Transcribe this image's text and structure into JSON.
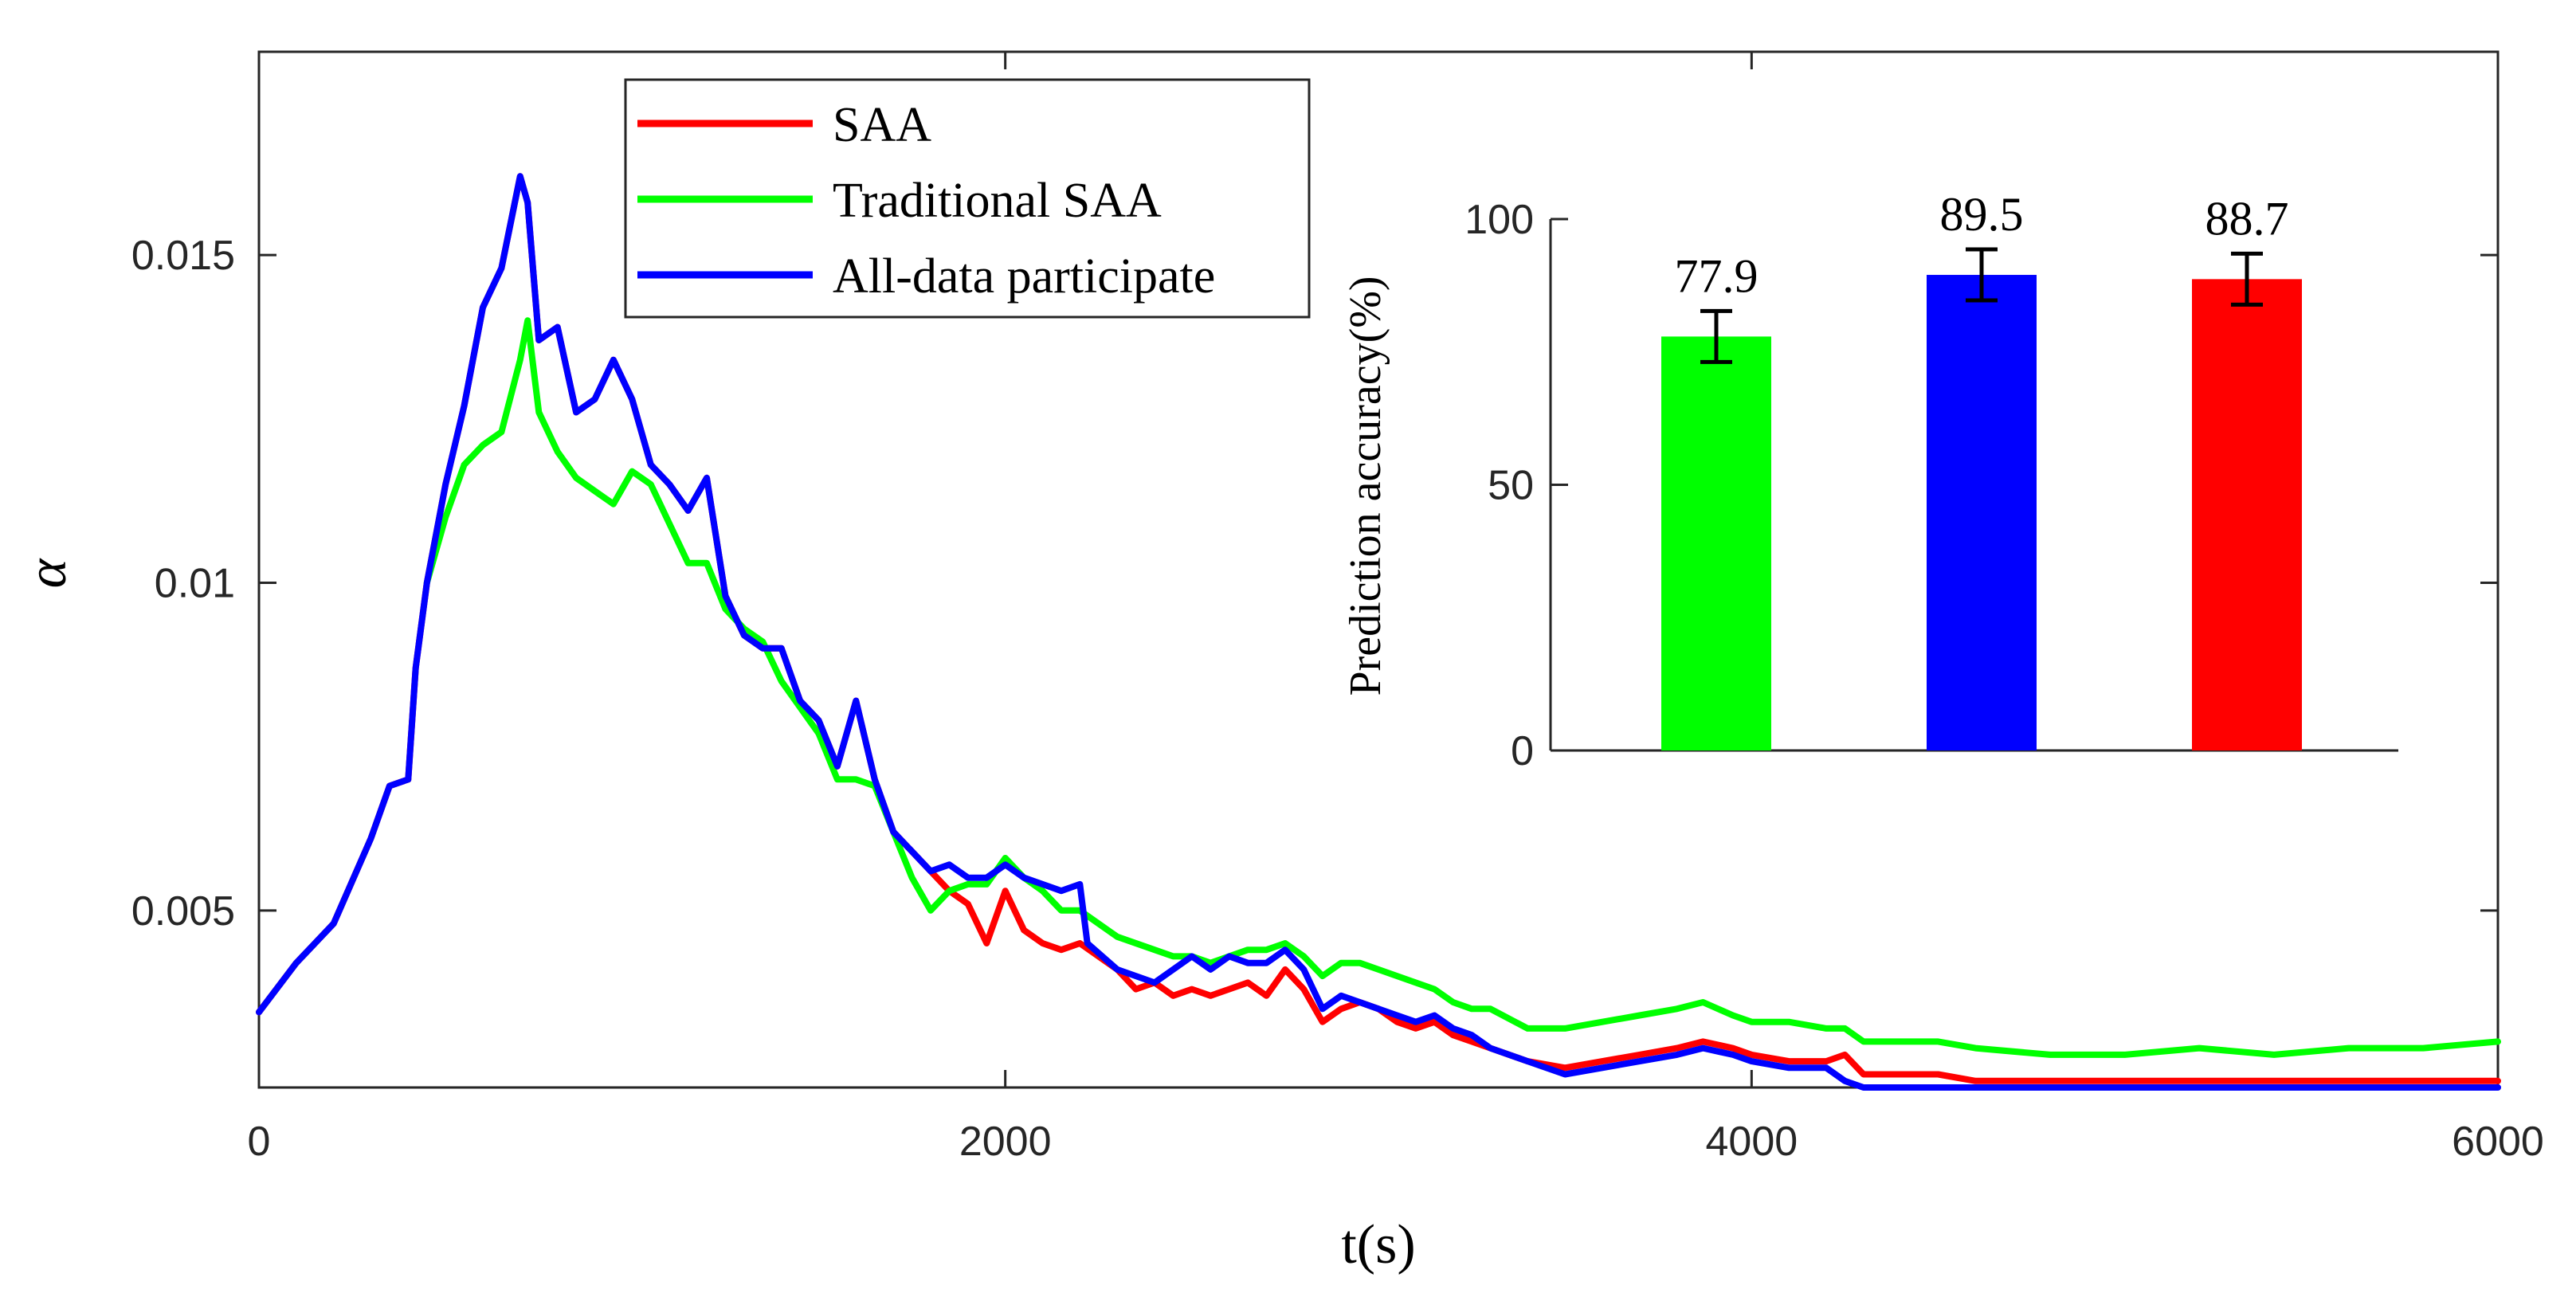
{
  "chart_data": [
    {
      "type": "line",
      "xlabel": "t(s)",
      "ylabel": "α",
      "xlim": [
        0,
        6000
      ],
      "ylim": [
        0.0023,
        0.0181
      ],
      "xticks": [
        0,
        2000,
        4000,
        6000
      ],
      "xtick_labels": [
        "0",
        "2000",
        "4000",
        "6000"
      ],
      "yticks": [
        0.005,
        0.01,
        0.015
      ],
      "ytick_labels": [
        "0.005",
        "0.01",
        "0.015"
      ],
      "grid": false,
      "legend_position": "top-left",
      "series": [
        {
          "name": "SAA",
          "color": "#ff0000",
          "x": [
            0,
            100,
            200,
            300,
            350,
            400,
            420,
            450,
            500,
            550,
            600,
            650,
            700,
            720,
            750,
            800,
            850,
            900,
            950,
            1000,
            1050,
            1100,
            1150,
            1200,
            1250,
            1300,
            1350,
            1400,
            1450,
            1500,
            1550,
            1600,
            1650,
            1700,
            1750,
            1800,
            1850,
            1900,
            1950,
            2000,
            2050,
            2100,
            2150,
            2200,
            2300,
            2350,
            2400,
            2450,
            2500,
            2550,
            2600,
            2650,
            2700,
            2750,
            2800,
            2850,
            2900,
            2950,
            3000,
            3050,
            3100,
            3150,
            3200,
            3250,
            3300,
            3400,
            3500,
            3600,
            3700,
            3800,
            3870,
            3950,
            4000,
            4100,
            4200,
            4250,
            4300,
            4400,
            4500,
            4600,
            4800,
            5000,
            5200,
            5400,
            5600,
            5800,
            6000
          ],
          "y": [
            0.00345,
            0.0042,
            0.0048,
            0.0061,
            0.0069,
            0.007,
            0.0087,
            0.01,
            0.0115,
            0.0127,
            0.0142,
            0.0148,
            0.0162,
            0.0158,
            0.0137,
            0.0139,
            0.0126,
            0.0128,
            0.0134,
            0.0128,
            0.0118,
            0.0115,
            0.0111,
            0.0116,
            0.0098,
            0.0092,
            0.009,
            0.009,
            0.0082,
            0.0079,
            0.0072,
            0.0082,
            0.007,
            0.0062,
            0.0059,
            0.0056,
            0.0053,
            0.0051,
            0.0045,
            0.0053,
            0.0047,
            0.0045,
            0.0044,
            0.0045,
            0.0041,
            0.0038,
            0.0039,
            0.0037,
            0.0038,
            0.0037,
            0.0038,
            0.0039,
            0.0037,
            0.0041,
            0.0038,
            0.0033,
            0.0035,
            0.0036,
            0.0035,
            0.0033,
            0.0032,
            0.0033,
            0.0031,
            0.003,
            0.0029,
            0.0027,
            0.0026,
            0.0027,
            0.0028,
            0.0029,
            0.003,
            0.0029,
            0.0028,
            0.0027,
            0.0027,
            0.0028,
            0.0025,
            0.0025,
            0.0025,
            0.0024,
            0.0024,
            0.0024,
            0.0024,
            0.0024,
            0.0024,
            0.0024,
            0.0024
          ]
        },
        {
          "name": "Traditional SAA",
          "color": "#00ff00",
          "x": [
            450,
            500,
            550,
            600,
            650,
            700,
            720,
            750,
            800,
            850,
            900,
            950,
            1000,
            1050,
            1100,
            1150,
            1200,
            1250,
            1300,
            1350,
            1400,
            1450,
            1500,
            1550,
            1600,
            1650,
            1700,
            1750,
            1800,
            1850,
            1900,
            1950,
            2000,
            2050,
            2100,
            2150,
            2200,
            2300,
            2400,
            2450,
            2500,
            2550,
            2600,
            2650,
            2700,
            2750,
            2800,
            2850,
            2900,
            2950,
            3000,
            3050,
            3100,
            3150,
            3200,
            3250,
            3300,
            3400,
            3500,
            3600,
            3700,
            3800,
            3870,
            3950,
            4000,
            4100,
            4200,
            4250,
            4300,
            4400,
            4500,
            4600,
            4800,
            5000,
            5200,
            5400,
            5600,
            5800,
            6000
          ],
          "y": [
            0.01,
            0.011,
            0.0118,
            0.0121,
            0.0123,
            0.0134,
            0.014,
            0.0126,
            0.012,
            0.0116,
            0.0114,
            0.0112,
            0.0117,
            0.0115,
            0.0109,
            0.0103,
            0.0103,
            0.0096,
            0.0093,
            0.0091,
            0.0085,
            0.0081,
            0.0077,
            0.007,
            0.007,
            0.0069,
            0.0062,
            0.0055,
            0.005,
            0.0053,
            0.0054,
            0.0054,
            0.0058,
            0.0055,
            0.0053,
            0.005,
            0.005,
            0.0046,
            0.0044,
            0.0043,
            0.0043,
            0.0042,
            0.0043,
            0.0044,
            0.0044,
            0.0045,
            0.0043,
            0.004,
            0.0042,
            0.0042,
            0.0041,
            0.004,
            0.0039,
            0.0038,
            0.0036,
            0.0035,
            0.0035,
            0.0032,
            0.0032,
            0.0033,
            0.0034,
            0.0035,
            0.0036,
            0.0034,
            0.0033,
            0.0033,
            0.0032,
            0.0032,
            0.003,
            0.003,
            0.003,
            0.0029,
            0.0028,
            0.0028,
            0.0029,
            0.0028,
            0.0029,
            0.0029,
            0.003
          ]
        },
        {
          "name": "All-data participate",
          "color": "#0000ff",
          "x": [
            0,
            100,
            200,
            300,
            350,
            400,
            420,
            450,
            500,
            550,
            600,
            650,
            700,
            720,
            750,
            800,
            850,
            900,
            950,
            1000,
            1050,
            1100,
            1150,
            1200,
            1250,
            1300,
            1350,
            1400,
            1450,
            1500,
            1550,
            1600,
            1650,
            1700,
            1750,
            1800,
            1850,
            1900,
            1950,
            2000,
            2050,
            2100,
            2150,
            2200,
            2220,
            2300,
            2400,
            2450,
            2500,
            2550,
            2600,
            2650,
            2700,
            2750,
            2800,
            2850,
            2900,
            2950,
            3000,
            3050,
            3100,
            3150,
            3200,
            3250,
            3300,
            3400,
            3500,
            3600,
            3700,
            3800,
            3870,
            3950,
            4000,
            4100,
            4200,
            4250,
            4300,
            4400,
            4500,
            4600,
            4800,
            5000,
            5200,
            5400,
            5600,
            5800,
            6000
          ],
          "y": [
            0.00345,
            0.0042,
            0.0048,
            0.0061,
            0.0069,
            0.007,
            0.0087,
            0.01,
            0.0115,
            0.0127,
            0.0142,
            0.0148,
            0.0162,
            0.0158,
            0.0137,
            0.0139,
            0.0126,
            0.0128,
            0.0134,
            0.0128,
            0.0118,
            0.0115,
            0.0111,
            0.0116,
            0.0098,
            0.0092,
            0.009,
            0.009,
            0.0082,
            0.0079,
            0.0072,
            0.0082,
            0.007,
            0.0062,
            0.0059,
            0.0056,
            0.0057,
            0.0055,
            0.0055,
            0.0057,
            0.0055,
            0.0054,
            0.0053,
            0.0054,
            0.0045,
            0.0041,
            0.0039,
            0.0041,
            0.0043,
            0.0041,
            0.0043,
            0.0042,
            0.0042,
            0.0044,
            0.0041,
            0.0035,
            0.0037,
            0.0036,
            0.0035,
            0.0034,
            0.0033,
            0.0034,
            0.0032,
            0.0031,
            0.0029,
            0.0027,
            0.0025,
            0.0026,
            0.0027,
            0.0028,
            0.0029,
            0.0028,
            0.0027,
            0.0026,
            0.0026,
            0.0024,
            0.0023,
            0.0023,
            0.0023,
            0.0023,
            0.0023,
            0.0023,
            0.0023,
            0.0023,
            0.0023,
            0.0023,
            0.0023
          ]
        }
      ]
    },
    {
      "type": "bar",
      "ylabel": "Prediction accuracy(%)",
      "ylim": [
        0,
        100
      ],
      "yticks": [
        0,
        50,
        100
      ],
      "ytick_labels": [
        "0",
        "50",
        "100"
      ],
      "bars": [
        {
          "value": 77.9,
          "label": "77.9",
          "error": 4.8,
          "color": "#00ff00"
        },
        {
          "value": 89.5,
          "label": "89.5",
          "error": 4.8,
          "color": "#0000ff"
        },
        {
          "value": 88.7,
          "label": "88.7",
          "error": 4.8,
          "color": "#ff0000"
        }
      ]
    }
  ]
}
